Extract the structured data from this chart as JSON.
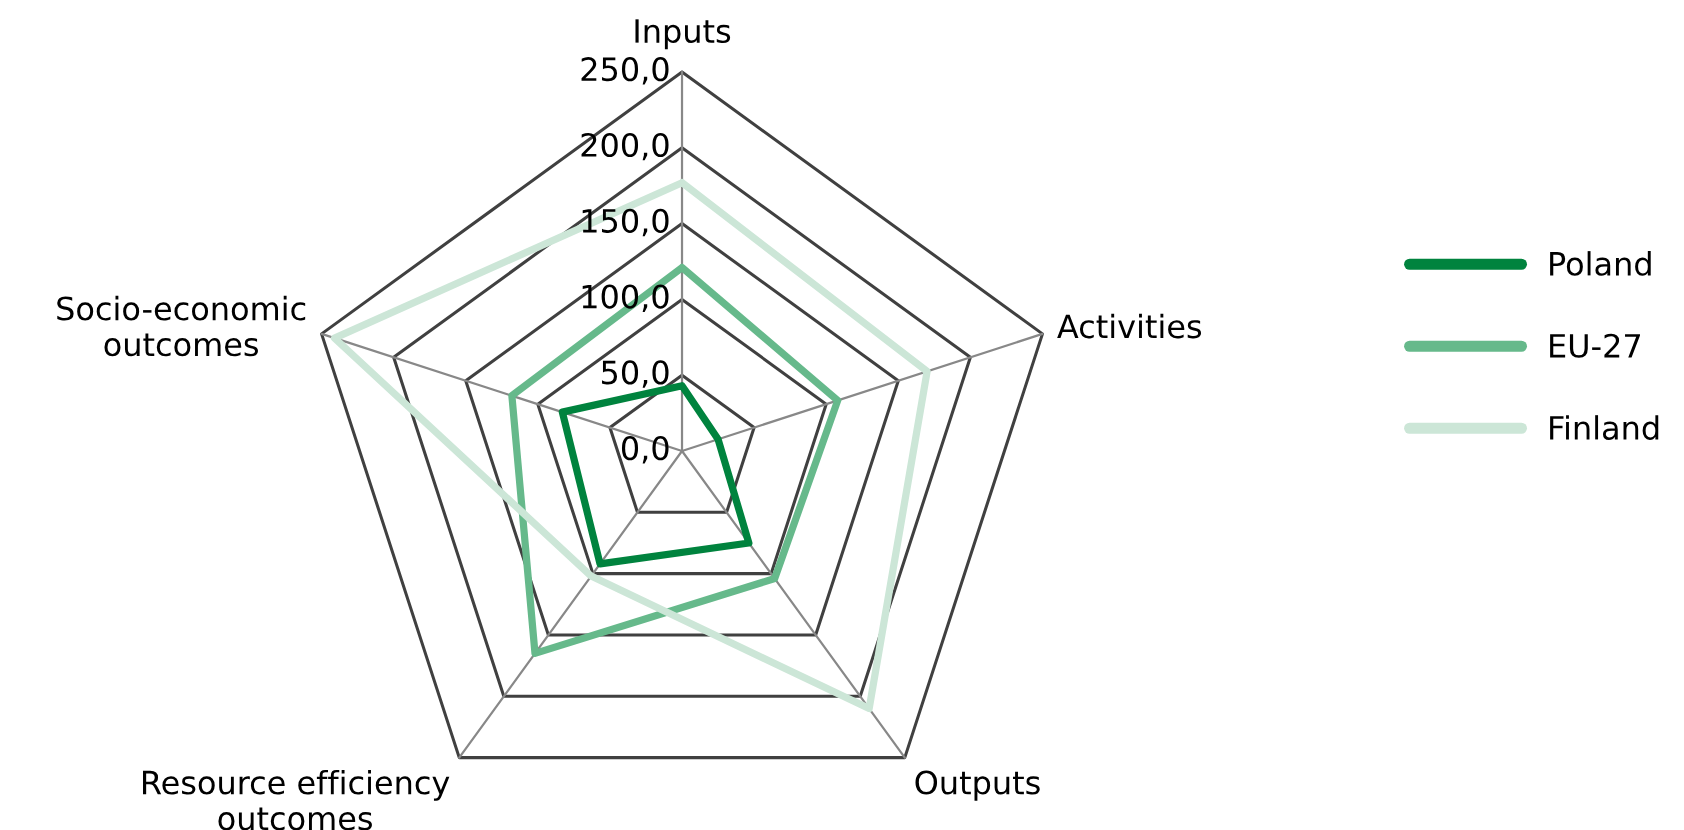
{
  "chart_data": {
    "type": "radar",
    "categories": [
      "Inputs",
      "Activities",
      "Outputs",
      "Resource efficiency\noutcomes",
      "Socio-economic\noutcomes"
    ],
    "series": [
      {
        "name": "Poland",
        "color": "#00833e",
        "values": [
          43,
          25,
          75,
          92,
          83
        ]
      },
      {
        "name": "EU-27",
        "color": "#66b98b",
        "values": [
          121,
          108,
          104,
          165,
          118
        ]
      },
      {
        "name": "Finland",
        "color": "#cce6d7",
        "values": [
          177,
          170,
          210,
          102,
          241
        ]
      }
    ],
    "ylim": [
      0,
      250
    ],
    "yticks": [
      {
        "value": 0,
        "label": "0,0"
      },
      {
        "value": 50,
        "label": "50,0"
      },
      {
        "value": 100,
        "label": "100,0"
      },
      {
        "value": 150,
        "label": "150,0"
      },
      {
        "value": 200,
        "label": "200,0"
      },
      {
        "value": 250,
        "label": "250,0"
      }
    ],
    "grid": true,
    "legend": "right"
  }
}
